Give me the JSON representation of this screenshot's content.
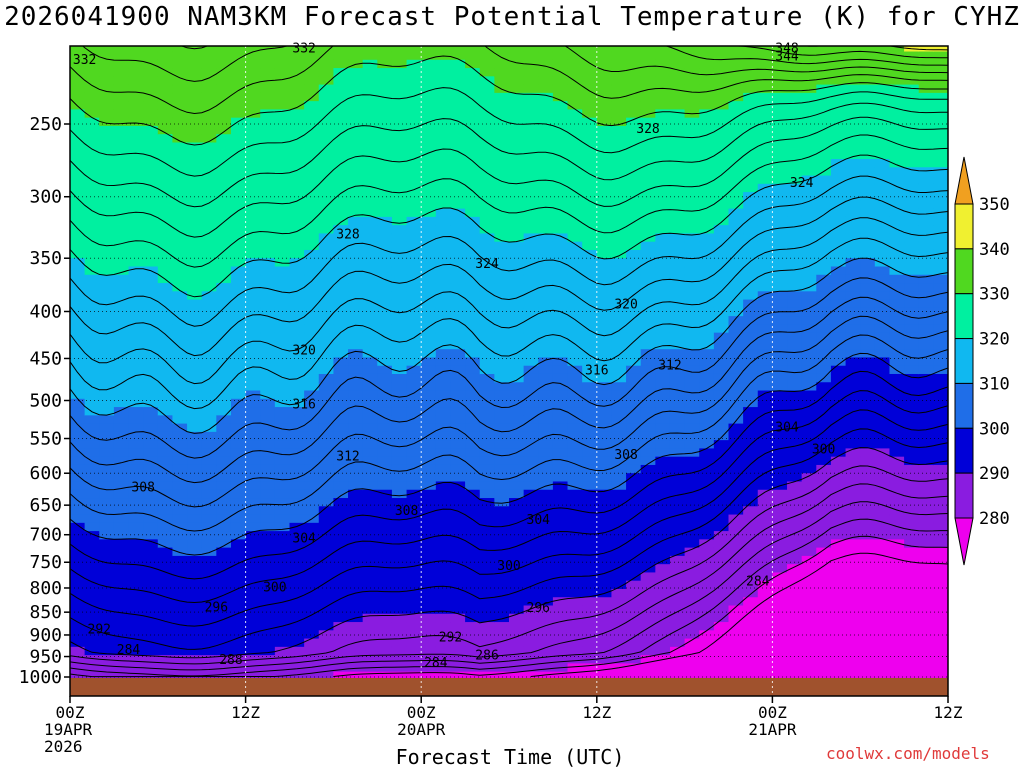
{
  "chart_data": {
    "type": "heatmap",
    "title": "2026041900 NAM3KM Forecast Potential Temperature (K) for CYHZ",
    "xlabel": "Forecast Time (UTC)",
    "ylabel": "",
    "credit": "coolwx.com/models",
    "x_range_hours": [
      0,
      60
    ],
    "y_range_hpa": [
      1000,
      200
    ],
    "y_ticks": [
      1000,
      950,
      900,
      850,
      800,
      750,
      700,
      650,
      600,
      550,
      500,
      450,
      400,
      350,
      300,
      250
    ],
    "x_ticks": [
      {
        "hour": 0,
        "lines": [
          "00Z",
          "19APR",
          "2026"
        ]
      },
      {
        "hour": 12,
        "lines": [
          "12Z"
        ]
      },
      {
        "hour": 24,
        "lines": [
          "00Z",
          "20APR"
        ]
      },
      {
        "hour": 36,
        "lines": [
          "12Z"
        ]
      },
      {
        "hour": 48,
        "lines": [
          "00Z",
          "21APR"
        ]
      },
      {
        "hour": 60,
        "lines": [
          "12Z"
        ]
      }
    ],
    "colorbar": {
      "levels": [
        280,
        290,
        300,
        310,
        320,
        330,
        340,
        350
      ],
      "colors": [
        "#ee00ee",
        "#8a1ce0",
        "#0000d8",
        "#1f6ee8",
        "#10b8f0",
        "#00f0a0",
        "#50d820",
        "#f0f030",
        "#f0a020"
      ],
      "labels": [
        "280",
        "290",
        "300",
        "310",
        "320",
        "330",
        "340",
        "350"
      ]
    },
    "contour_interval": 2,
    "contour_labels": [
      {
        "text": "332",
        "hour": 1.0,
        "p": 213
      },
      {
        "text": "332",
        "hour": 16.0,
        "p": 207
      },
      {
        "text": "348",
        "hour": 49.0,
        "p": 207
      },
      {
        "text": "344",
        "hour": 49.0,
        "p": 211
      },
      {
        "text": "328",
        "hour": 39.5,
        "p": 253
      },
      {
        "text": "324",
        "hour": 50.0,
        "p": 290
      },
      {
        "text": "328",
        "hour": 19.0,
        "p": 330
      },
      {
        "text": "324",
        "hour": 28.5,
        "p": 355
      },
      {
        "text": "320",
        "hour": 38.0,
        "p": 393
      },
      {
        "text": "320",
        "hour": 16.0,
        "p": 441
      },
      {
        "text": "316",
        "hour": 36.0,
        "p": 464
      },
      {
        "text": "312",
        "hour": 41.0,
        "p": 458
      },
      {
        "text": "316",
        "hour": 16.0,
        "p": 505
      },
      {
        "text": "304",
        "hour": 49.0,
        "p": 535
      },
      {
        "text": "300",
        "hour": 51.5,
        "p": 565
      },
      {
        "text": "312",
        "hour": 19.0,
        "p": 575
      },
      {
        "text": "308",
        "hour": 38.0,
        "p": 573
      },
      {
        "text": "308",
        "hour": 5.0,
        "p": 622
      },
      {
        "text": "308",
        "hour": 23.0,
        "p": 660
      },
      {
        "text": "304",
        "hour": 32.0,
        "p": 675
      },
      {
        "text": "304",
        "hour": 16.0,
        "p": 707
      },
      {
        "text": "300",
        "hour": 30.0,
        "p": 757
      },
      {
        "text": "284",
        "hour": 47.0,
        "p": 787
      },
      {
        "text": "300",
        "hour": 14.0,
        "p": 799
      },
      {
        "text": "296",
        "hour": 10.0,
        "p": 840
      },
      {
        "text": "296",
        "hour": 32.0,
        "p": 841
      },
      {
        "text": "292",
        "hour": 2.0,
        "p": 888
      },
      {
        "text": "292",
        "hour": 26.0,
        "p": 906
      },
      {
        "text": "284",
        "hour": 4.0,
        "p": 935
      },
      {
        "text": "286",
        "hour": 28.5,
        "p": 947
      },
      {
        "text": "288",
        "hour": 11.0,
        "p": 958
      },
      {
        "text": "284",
        "hour": 25.0,
        "p": 965
      }
    ]
  }
}
